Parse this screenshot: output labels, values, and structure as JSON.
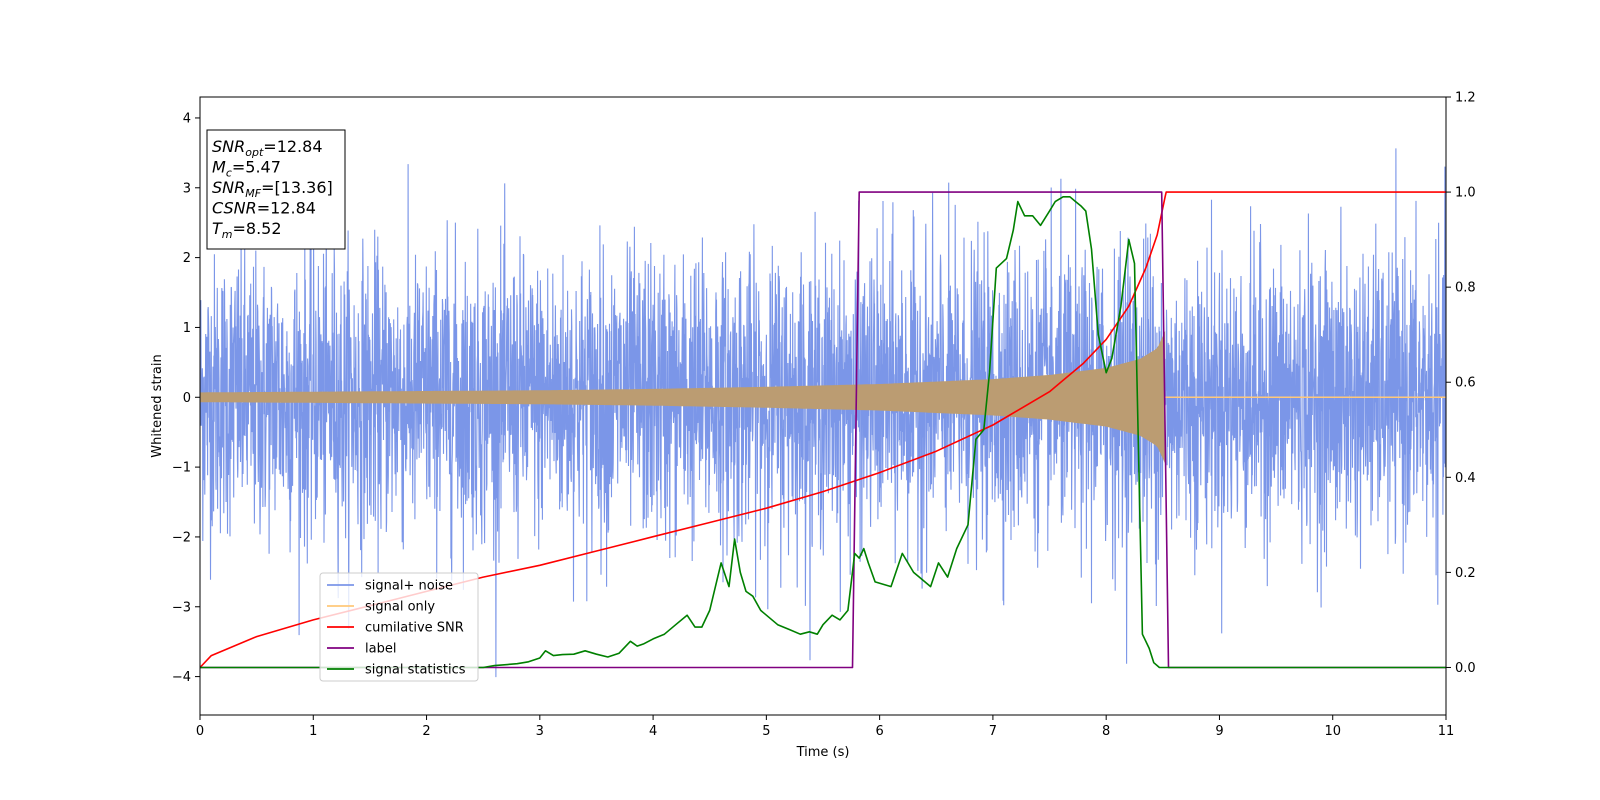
{
  "chart_data": {
    "type": "line",
    "xlabel": "Time (s)",
    "ylabel_left": "Whitened strain",
    "ylabel_right": "",
    "xlim": [
      0,
      11
    ],
    "ylim_left": [
      -4.55,
      4.3
    ],
    "ylim_right": [
      -0.1,
      1.2
    ],
    "x_ticks": [
      0,
      1,
      2,
      3,
      4,
      5,
      6,
      7,
      8,
      9,
      10,
      11
    ],
    "y_left_ticks": [
      -4,
      -3,
      -2,
      -1,
      0,
      1,
      2,
      3,
      4
    ],
    "y_right_ticks": [
      0.0,
      0.2,
      0.4,
      0.6,
      0.8,
      1.0,
      1.2
    ],
    "grid": false,
    "legend_placement": "lower-left",
    "legend": [
      {
        "label": "signal+ noise",
        "color": "#7b96e8"
      },
      {
        "label": "signal only",
        "color": "#ffc87a"
      },
      {
        "label": "cumilative SNR",
        "color": "#ff0000"
      },
      {
        "label": "label",
        "color": "#800080"
      },
      {
        "label": "signal statistics",
        "color": "#008000"
      }
    ],
    "info_box": [
      {
        "base": "SNR",
        "sub": "opt",
        "value": "=12.84"
      },
      {
        "base": "M",
        "sub": "c",
        "value": "=5.47"
      },
      {
        "base": "SNR",
        "sub": "MF",
        "value": "=[13.36]"
      },
      {
        "base": "CSNR",
        "sub": "",
        "value": "=12.84"
      },
      {
        "base": "T",
        "sub": "m",
        "value": "=8.52"
      }
    ],
    "series": [
      {
        "name": "signal+ noise",
        "axis": "left",
        "color": "#7b96e8",
        "kind": "noise",
        "x_range": [
          0,
          11
        ],
        "approx_std": 1.0,
        "y_extent": [
          -4.2,
          3.9
        ]
      },
      {
        "name": "signal only",
        "axis": "left",
        "color": "#ffc87a",
        "kind": "chirp",
        "x_range": [
          0,
          8.52
        ],
        "envelope": {
          "x": [
            0,
            1,
            2,
            3,
            4,
            5,
            6,
            7,
            7.5,
            8,
            8.3,
            8.45,
            8.52
          ],
          "amp": [
            0.07,
            0.08,
            0.09,
            0.1,
            0.12,
            0.15,
            0.19,
            0.26,
            0.32,
            0.42,
            0.55,
            0.7,
            0.95
          ]
        }
      },
      {
        "name": "cumilative SNR",
        "axis": "right",
        "color": "#ff0000",
        "x": [
          0,
          0.1,
          0.5,
          1,
          1.5,
          2,
          2.5,
          3,
          3.5,
          4,
          4.5,
          5,
          5.5,
          6,
          6.5,
          7,
          7.5,
          7.8,
          8,
          8.2,
          8.35,
          8.45,
          8.52,
          8.53,
          11
        ],
        "y": [
          0.0,
          0.025,
          0.065,
          0.1,
          0.13,
          0.16,
          0.19,
          0.215,
          0.245,
          0.275,
          0.305,
          0.335,
          0.37,
          0.41,
          0.455,
          0.51,
          0.58,
          0.64,
          0.69,
          0.76,
          0.84,
          0.91,
          0.99,
          1.0,
          1.0
        ]
      },
      {
        "name": "label",
        "axis": "right",
        "color": "#800080",
        "x": [
          0,
          5.76,
          5.82,
          8.49,
          8.55,
          11
        ],
        "y": [
          0,
          0,
          1,
          1,
          0,
          0
        ]
      },
      {
        "name": "signal statistics",
        "axis": "right",
        "color": "#008000",
        "x": [
          0,
          2.5,
          2.6,
          2.8,
          2.9,
          3.0,
          3.05,
          3.12,
          3.2,
          3.3,
          3.4,
          3.5,
          3.6,
          3.7,
          3.8,
          3.86,
          3.92,
          4.0,
          4.1,
          4.2,
          4.3,
          4.37,
          4.43,
          4.5,
          4.6,
          4.67,
          4.72,
          4.77,
          4.82,
          4.88,
          4.95,
          5.0,
          5.1,
          5.2,
          5.3,
          5.38,
          5.45,
          5.5,
          5.58,
          5.65,
          5.72,
          5.78,
          5.82,
          5.86,
          5.9,
          5.96,
          6.1,
          6.2,
          6.3,
          6.35,
          6.45,
          6.52,
          6.6,
          6.68,
          6.78,
          6.85,
          6.92,
          6.97,
          7.03,
          7.12,
          7.18,
          7.22,
          7.28,
          7.35,
          7.42,
          7.5,
          7.55,
          7.62,
          7.68,
          7.73,
          7.78,
          7.82,
          7.87,
          7.93,
          8.0,
          8.05,
          8.13,
          8.2,
          8.25,
          8.32,
          8.38,
          8.42,
          8.47,
          8.53,
          8.6,
          11
        ],
        "y": [
          0,
          0,
          0.004,
          0.008,
          0.012,
          0.02,
          0.035,
          0.025,
          0.027,
          0.028,
          0.035,
          0.028,
          0.022,
          0.03,
          0.055,
          0.045,
          0.05,
          0.06,
          0.07,
          0.09,
          0.11,
          0.085,
          0.085,
          0.12,
          0.22,
          0.17,
          0.27,
          0.2,
          0.16,
          0.15,
          0.12,
          0.11,
          0.09,
          0.08,
          0.07,
          0.075,
          0.07,
          0.09,
          0.11,
          0.1,
          0.12,
          0.24,
          0.23,
          0.25,
          0.22,
          0.18,
          0.17,
          0.24,
          0.2,
          0.19,
          0.17,
          0.22,
          0.19,
          0.25,
          0.3,
          0.48,
          0.5,
          0.62,
          0.84,
          0.86,
          0.92,
          0.98,
          0.95,
          0.95,
          0.93,
          0.96,
          0.98,
          0.99,
          0.99,
          0.98,
          0.97,
          0.96,
          0.88,
          0.7,
          0.62,
          0.65,
          0.76,
          0.9,
          0.85,
          0.07,
          0.04,
          0.01,
          0.0,
          0.0,
          0.0,
          0.0
        ]
      }
    ]
  }
}
